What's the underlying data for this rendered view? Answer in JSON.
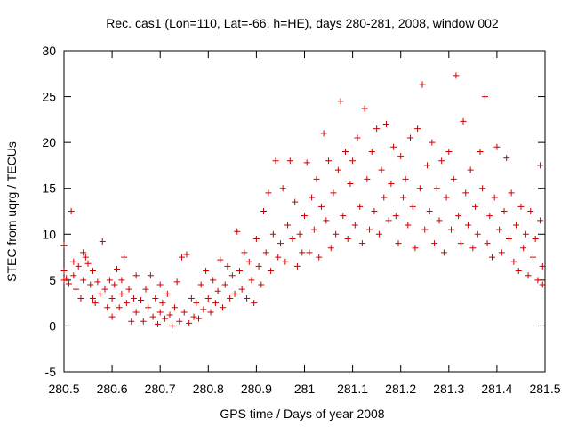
{
  "chart_data": {
    "type": "scatter",
    "title": "Rec. cas1 (Lon=110, Lat=-66, h=HE), days 280-281, 2008, window 002",
    "xlabel": "GPS time / Days of year 2008",
    "ylabel": "STEC from uqrg / TECUs",
    "xlim": [
      280.5,
      281.5
    ],
    "ylim": [
      -5,
      30
    ],
    "x_ticks": [
      280.5,
      280.6,
      280.7,
      280.8,
      280.9,
      281,
      281.1,
      281.2,
      281.3,
      281.4,
      281.5
    ],
    "x_tick_labels": [
      "280.5",
      "280.6",
      "280.7",
      "280.8",
      "280.9",
      "281",
      "281.1",
      "281.2",
      "281.3",
      "281.4",
      "281.5"
    ],
    "y_ticks": [
      -5,
      0,
      5,
      10,
      15,
      20,
      25,
      30
    ],
    "y_tick_labels": [
      "-5",
      "0",
      "5",
      "10",
      "15",
      "20",
      "25",
      "30"
    ],
    "grid": false,
    "marker": "+",
    "color": "#cc0000",
    "series": [
      {
        "name": "",
        "points": [
          [
            280.5,
            5.0
          ],
          [
            280.5,
            8.8
          ],
          [
            280.5,
            6.0
          ],
          [
            280.505,
            5.2
          ],
          [
            280.51,
            4.6
          ],
          [
            280.515,
            12.5
          ],
          [
            280.52,
            7.0
          ],
          [
            280.52,
            5.5
          ],
          [
            280.525,
            4.0
          ],
          [
            280.53,
            6.5
          ],
          [
            280.535,
            3.0
          ],
          [
            280.54,
            8.0
          ],
          [
            280.54,
            5.0
          ],
          [
            280.545,
            7.5
          ],
          [
            280.55,
            6.8
          ],
          [
            280.555,
            4.5
          ],
          [
            280.56,
            3.0
          ],
          [
            280.56,
            6.0
          ],
          [
            280.565,
            2.5
          ],
          [
            280.57,
            4.8
          ],
          [
            280.575,
            3.5
          ],
          [
            280.58,
            9.2
          ],
          [
            280.585,
            4.0
          ],
          [
            280.59,
            2.0
          ],
          [
            280.595,
            5.0
          ],
          [
            280.6,
            3.0
          ],
          [
            280.6,
            1.0
          ],
          [
            280.605,
            4.5
          ],
          [
            280.61,
            6.2
          ],
          [
            280.615,
            2.0
          ],
          [
            280.62,
            3.5
          ],
          [
            280.62,
            5.0
          ],
          [
            280.625,
            7.5
          ],
          [
            280.63,
            2.5
          ],
          [
            280.635,
            4.0
          ],
          [
            280.64,
            0.5
          ],
          [
            280.645,
            3.0
          ],
          [
            280.65,
            1.5
          ],
          [
            280.65,
            5.5
          ],
          [
            280.66,
            2.8
          ],
          [
            280.665,
            0.5
          ],
          [
            280.67,
            4.0
          ],
          [
            280.675,
            2.0
          ],
          [
            280.68,
            5.5
          ],
          [
            280.685,
            1.0
          ],
          [
            280.69,
            3.0
          ],
          [
            280.695,
            0.2
          ],
          [
            280.7,
            1.5
          ],
          [
            280.7,
            4.5
          ],
          [
            280.705,
            2.5
          ],
          [
            280.71,
            0.8
          ],
          [
            280.715,
            3.5
          ],
          [
            280.72,
            1.2
          ],
          [
            280.725,
            0.0
          ],
          [
            280.73,
            2.0
          ],
          [
            280.735,
            4.8
          ],
          [
            280.74,
            0.5
          ],
          [
            280.745,
            7.5
          ],
          [
            280.75,
            1.5
          ],
          [
            280.755,
            7.8
          ],
          [
            280.76,
            0.3
          ],
          [
            280.765,
            3.0
          ],
          [
            280.77,
            1.0
          ],
          [
            280.775,
            2.5
          ],
          [
            280.78,
            0.8
          ],
          [
            280.785,
            4.5
          ],
          [
            280.79,
            1.8
          ],
          [
            280.795,
            6.0
          ],
          [
            280.8,
            3.0
          ],
          [
            280.805,
            1.5
          ],
          [
            280.81,
            5.0
          ],
          [
            280.815,
            2.5
          ],
          [
            280.82,
            3.8
          ],
          [
            280.825,
            7.2
          ],
          [
            280.83,
            2.0
          ],
          [
            280.835,
            4.5
          ],
          [
            280.84,
            6.5
          ],
          [
            280.845,
            3.0
          ],
          [
            280.85,
            5.5
          ],
          [
            280.855,
            3.5
          ],
          [
            280.86,
            10.3
          ],
          [
            280.865,
            6.0
          ],
          [
            280.87,
            4.0
          ],
          [
            280.875,
            8.0
          ],
          [
            280.88,
            3.0
          ],
          [
            280.885,
            7.0
          ],
          [
            280.89,
            5.0
          ],
          [
            280.895,
            2.5
          ],
          [
            280.9,
            9.5
          ],
          [
            280.905,
            6.5
          ],
          [
            280.91,
            4.5
          ],
          [
            280.915,
            12.5
          ],
          [
            280.92,
            8.0
          ],
          [
            280.925,
            14.5
          ],
          [
            280.93,
            6.0
          ],
          [
            280.935,
            10.0
          ],
          [
            280.94,
            18.0
          ],
          [
            280.945,
            7.5
          ],
          [
            280.95,
            9.0
          ],
          [
            280.955,
            15.0
          ],
          [
            280.96,
            7.0
          ],
          [
            280.965,
            11.0
          ],
          [
            280.97,
            18.0
          ],
          [
            280.975,
            9.5
          ],
          [
            280.98,
            13.5
          ],
          [
            280.985,
            6.5
          ],
          [
            280.99,
            10.0
          ],
          [
            280.995,
            8.0
          ],
          [
            281.0,
            12.0
          ],
          [
            281.005,
            17.8
          ],
          [
            281.01,
            8.0
          ],
          [
            281.015,
            14.0
          ],
          [
            281.02,
            10.5
          ],
          [
            281.025,
            16.0
          ],
          [
            281.03,
            7.5
          ],
          [
            281.035,
            13.0
          ],
          [
            281.04,
            21.0
          ],
          [
            281.045,
            11.5
          ],
          [
            281.05,
            18.0
          ],
          [
            281.055,
            8.5
          ],
          [
            281.06,
            14.5
          ],
          [
            281.065,
            10.0
          ],
          [
            281.07,
            17.0
          ],
          [
            281.075,
            24.5
          ],
          [
            281.08,
            12.0
          ],
          [
            281.085,
            19.0
          ],
          [
            281.09,
            9.5
          ],
          [
            281.095,
            15.5
          ],
          [
            281.1,
            18.0
          ],
          [
            281.105,
            11.0
          ],
          [
            281.11,
            20.5
          ],
          [
            281.115,
            13.0
          ],
          [
            281.12,
            9.0
          ],
          [
            281.125,
            23.7
          ],
          [
            281.13,
            16.0
          ],
          [
            281.135,
            10.5
          ],
          [
            281.14,
            19.0
          ],
          [
            281.145,
            12.5
          ],
          [
            281.15,
            21.5
          ],
          [
            281.155,
            10.0
          ],
          [
            281.16,
            17.0
          ],
          [
            281.165,
            14.0
          ],
          [
            281.17,
            22.0
          ],
          [
            281.175,
            11.5
          ],
          [
            281.18,
            15.5
          ],
          [
            281.185,
            19.5
          ],
          [
            281.19,
            12.0
          ],
          [
            281.195,
            9.0
          ],
          [
            281.2,
            18.5
          ],
          [
            281.205,
            14.0
          ],
          [
            281.21,
            16.0
          ],
          [
            281.215,
            11.0
          ],
          [
            281.22,
            20.5
          ],
          [
            281.225,
            13.0
          ],
          [
            281.23,
            8.5
          ],
          [
            281.235,
            21.5
          ],
          [
            281.24,
            15.0
          ],
          [
            281.245,
            26.3
          ],
          [
            281.25,
            10.5
          ],
          [
            281.255,
            17.5
          ],
          [
            281.26,
            12.5
          ],
          [
            281.265,
            20.0
          ],
          [
            281.27,
            9.0
          ],
          [
            281.275,
            15.0
          ],
          [
            281.28,
            11.5
          ],
          [
            281.285,
            18.0
          ],
          [
            281.29,
            8.0
          ],
          [
            281.295,
            14.0
          ],
          [
            281.3,
            19.0
          ],
          [
            281.305,
            10.5
          ],
          [
            281.31,
            16.0
          ],
          [
            281.315,
            27.3
          ],
          [
            281.32,
            12.0
          ],
          [
            281.325,
            9.0
          ],
          [
            281.33,
            22.3
          ],
          [
            281.335,
            14.5
          ],
          [
            281.34,
            11.0
          ],
          [
            281.345,
            17.0
          ],
          [
            281.35,
            8.5
          ],
          [
            281.355,
            13.0
          ],
          [
            281.36,
            10.0
          ],
          [
            281.365,
            19.0
          ],
          [
            281.37,
            15.0
          ],
          [
            281.375,
            25.0
          ],
          [
            281.38,
            9.0
          ],
          [
            281.385,
            12.0
          ],
          [
            281.39,
            7.5
          ],
          [
            281.395,
            14.0
          ],
          [
            281.4,
            19.5
          ],
          [
            281.405,
            10.5
          ],
          [
            281.41,
            8.0
          ],
          [
            281.415,
            12.5
          ],
          [
            281.42,
            18.3
          ],
          [
            281.425,
            9.5
          ],
          [
            281.43,
            14.5
          ],
          [
            281.435,
            7.0
          ],
          [
            281.44,
            11.0
          ],
          [
            281.445,
            6.0
          ],
          [
            281.45,
            13.0
          ],
          [
            281.455,
            8.5
          ],
          [
            281.46,
            10.0
          ],
          [
            281.465,
            5.5
          ],
          [
            281.47,
            12.5
          ],
          [
            281.475,
            7.5
          ],
          [
            281.48,
            9.5
          ],
          [
            281.485,
            5.0
          ],
          [
            281.49,
            11.5
          ],
          [
            281.49,
            17.5
          ],
          [
            281.495,
            6.5
          ],
          [
            281.495,
            4.5
          ]
        ]
      }
    ]
  }
}
